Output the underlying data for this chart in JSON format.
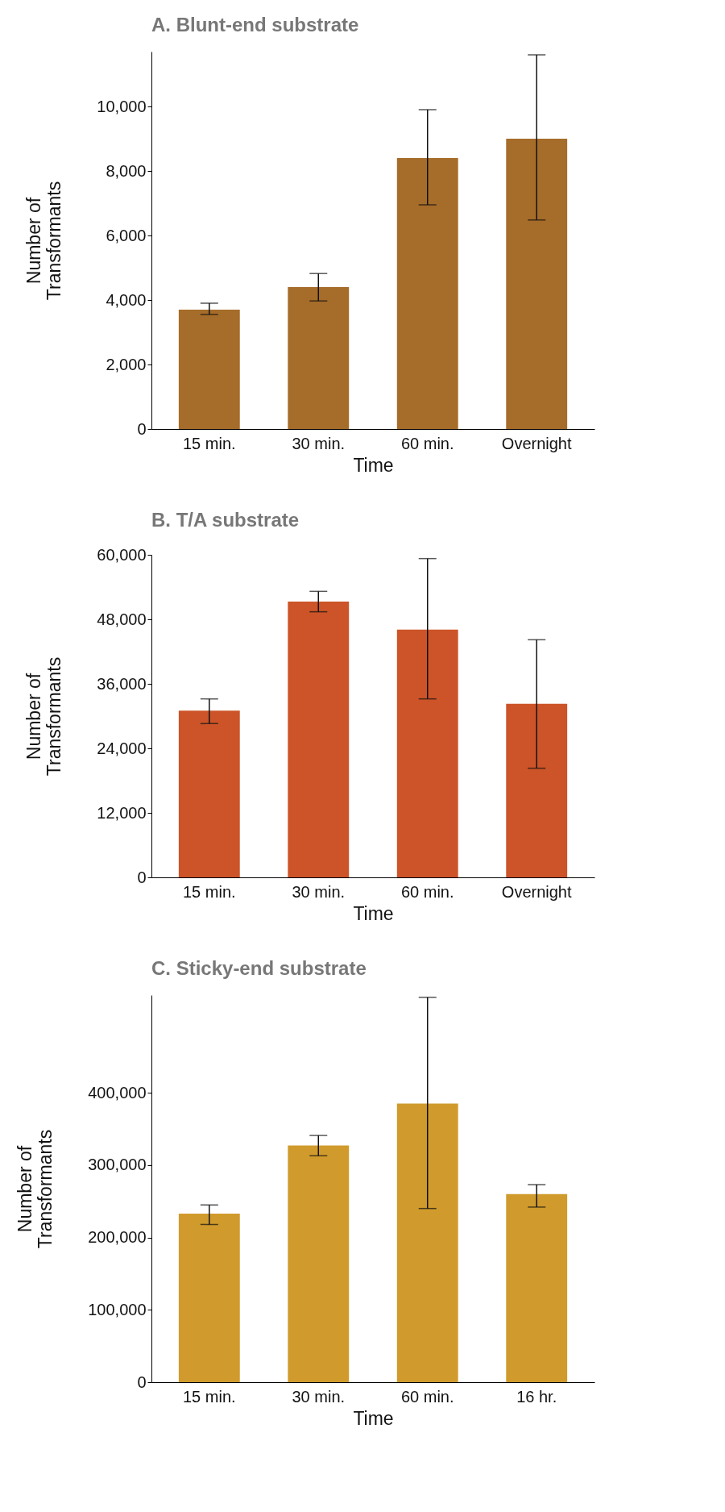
{
  "chart_data": [
    {
      "type": "bar",
      "title": "A. Blunt-end substrate",
      "xlabel": "Time",
      "ylabel": "Number of Transformants",
      "categories": [
        "15 min.",
        "30 min.",
        "60 min.",
        "Overnight"
      ],
      "values": [
        3700,
        4400,
        8400,
        9000
      ],
      "errors": [
        [
          3550,
          3900
        ],
        [
          3970,
          4820
        ],
        [
          6950,
          9900
        ],
        [
          6480,
          11600
        ]
      ],
      "color": "#a66c29",
      "ylim": [
        0,
        11700
      ],
      "yticks": [
        0,
        {
          "value": 2000,
          "label": "2,000"
        },
        {
          "value": 4000,
          "label": "4,000"
        },
        {
          "value": 6000,
          "label": "6,000"
        },
        {
          "value": 8000,
          "label": "8,000"
        },
        {
          "value": 10000,
          "label": "10,000"
        }
      ]
    },
    {
      "type": "bar",
      "title": "B. T/A substrate",
      "xlabel": "Time",
      "ylabel": "Number of Transformants",
      "categories": [
        "15 min.",
        "30 min.",
        "60 min.",
        "Overnight"
      ],
      "values": [
        31000,
        51300,
        46100,
        32300
      ],
      "errors": [
        [
          28600,
          33200
        ],
        [
          49400,
          53200
        ],
        [
          33200,
          59300
        ],
        [
          20300,
          44200
        ]
      ],
      "color": "#cc5428",
      "ylim": [
        0,
        60000
      ],
      "yticks": [
        0,
        {
          "value": 12000,
          "label": "12,000"
        },
        {
          "value": 24000,
          "label": "24,000"
        },
        {
          "value": 36000,
          "label": "36,000"
        },
        {
          "value": 48000,
          "label": "48,000"
        },
        {
          "value": 60000,
          "label": "60,000"
        }
      ]
    },
    {
      "type": "bar",
      "title": "C. Sticky-end substrate",
      "xlabel": "Time",
      "ylabel": "Number of Transformants",
      "categories": [
        "15 min.",
        "30 min.",
        "60 min.",
        "16 hr."
      ],
      "values": [
        233000,
        327000,
        385000,
        260000
      ],
      "errors": [
        [
          218000,
          245000
        ],
        [
          313000,
          341000
        ],
        [
          240000,
          532000
        ],
        [
          242000,
          273000
        ]
      ],
      "color": "#d09b2c",
      "ylim": [
        0,
        535000
      ],
      "yticks": [
        0,
        {
          "value": 100000,
          "label": "100,000"
        },
        {
          "value": 200000,
          "label": "200,000"
        },
        {
          "value": 300000,
          "label": "300,000"
        },
        {
          "value": 400000,
          "label": "400,000"
        }
      ]
    }
  ]
}
